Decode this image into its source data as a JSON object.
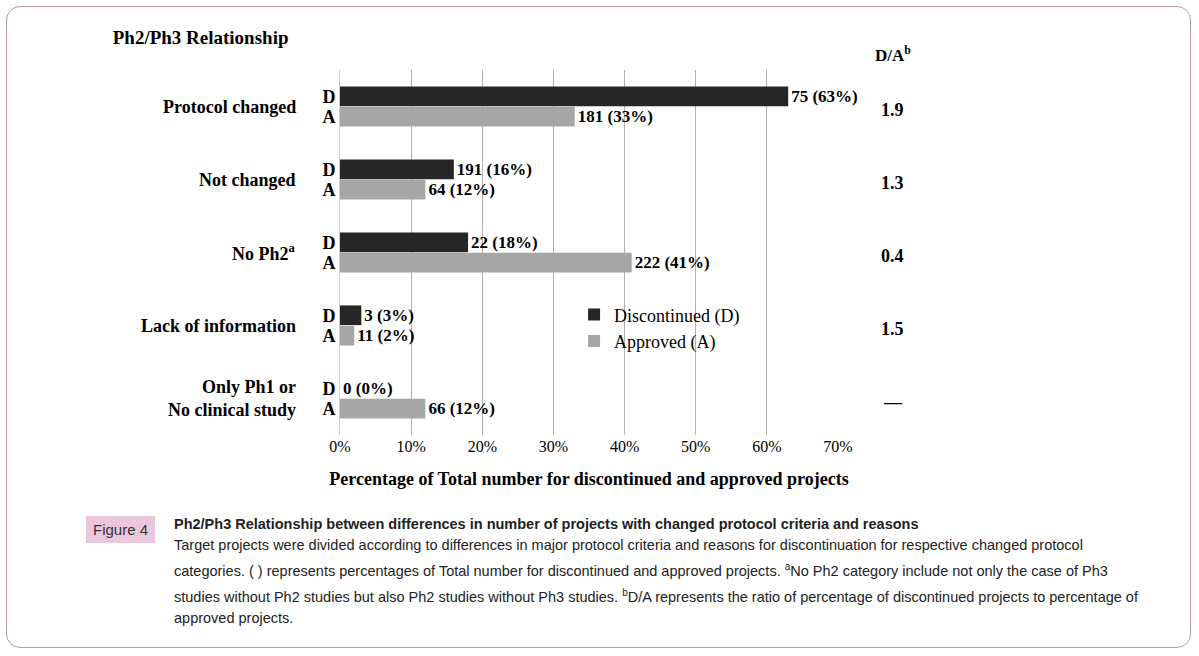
{
  "chart_data": {
    "type": "bar",
    "orientation": "horizontal",
    "title": "Ph2/Ph3 Relationship",
    "x_label": "Percentage of Total number for discontinued and approved projects",
    "categories": [
      "Protocol changed",
      "Not changed",
      "No Ph2",
      "Lack of information",
      "Only Ph1 or\nNo clinical study"
    ],
    "category_footnotes": {
      "No Ph2": "a"
    },
    "series": [
      {
        "name": "Discontinued (D)",
        "abbr": "D",
        "color": "#262626",
        "values": [
          63,
          16,
          18,
          3,
          0
        ],
        "value_labels": [
          "75 (63%)",
          "191 (16%)",
          "22 (18%)",
          "3 (3%)",
          "0 (0%)"
        ]
      },
      {
        "name": "Approved (A)",
        "abbr": "A",
        "color": "#a6a6a6",
        "values": [
          33,
          12,
          41,
          2,
          12
        ],
        "value_labels": [
          "181 (33%)",
          "64 (12%)",
          "222 (41%)",
          "11 (2%)",
          "66 (12%)"
        ]
      }
    ],
    "ratio_title": "D/A",
    "ratio_title_footnote": "b",
    "ratios": [
      1.9,
      1.3,
      0.4,
      1.5,
      null
    ],
    "ratio_missing_label": "—",
    "xlim": [
      0,
      70
    ],
    "xticks": [
      {
        "value": 0,
        "label": "0%"
      },
      {
        "value": 10,
        "label": "10%"
      },
      {
        "value": 20,
        "label": "20%"
      },
      {
        "value": 30,
        "label": "30%"
      },
      {
        "value": 40,
        "label": "40%"
      },
      {
        "value": 50,
        "label": "50%"
      },
      {
        "value": 60,
        "label": "60%"
      },
      {
        "value": 70,
        "label": "70%"
      }
    ],
    "grid": true,
    "legend": "center",
    "data_labels": true,
    "caption": {
      "label": "Figure 4",
      "title": "Ph2/Ph3 Relationship between differences in number of projects with changed protocol criteria and reasons",
      "body": "Target projects were divided according to differences in major protocol criteria and reasons for discontinuation for respective changed protocol categories. ( ) represents percentages of Total number for discontinued and approved projects.",
      "notes": [
        {
          "mark": "a",
          "text": "No Ph2 category include not only the case of Ph3 studies without Ph2 studies but also Ph2 studies without Ph3 studies."
        },
        {
          "mark": "b",
          "text": "D/A represents the ratio of percentage of discontinued projects to percentage of approved projects."
        }
      ]
    }
  }
}
